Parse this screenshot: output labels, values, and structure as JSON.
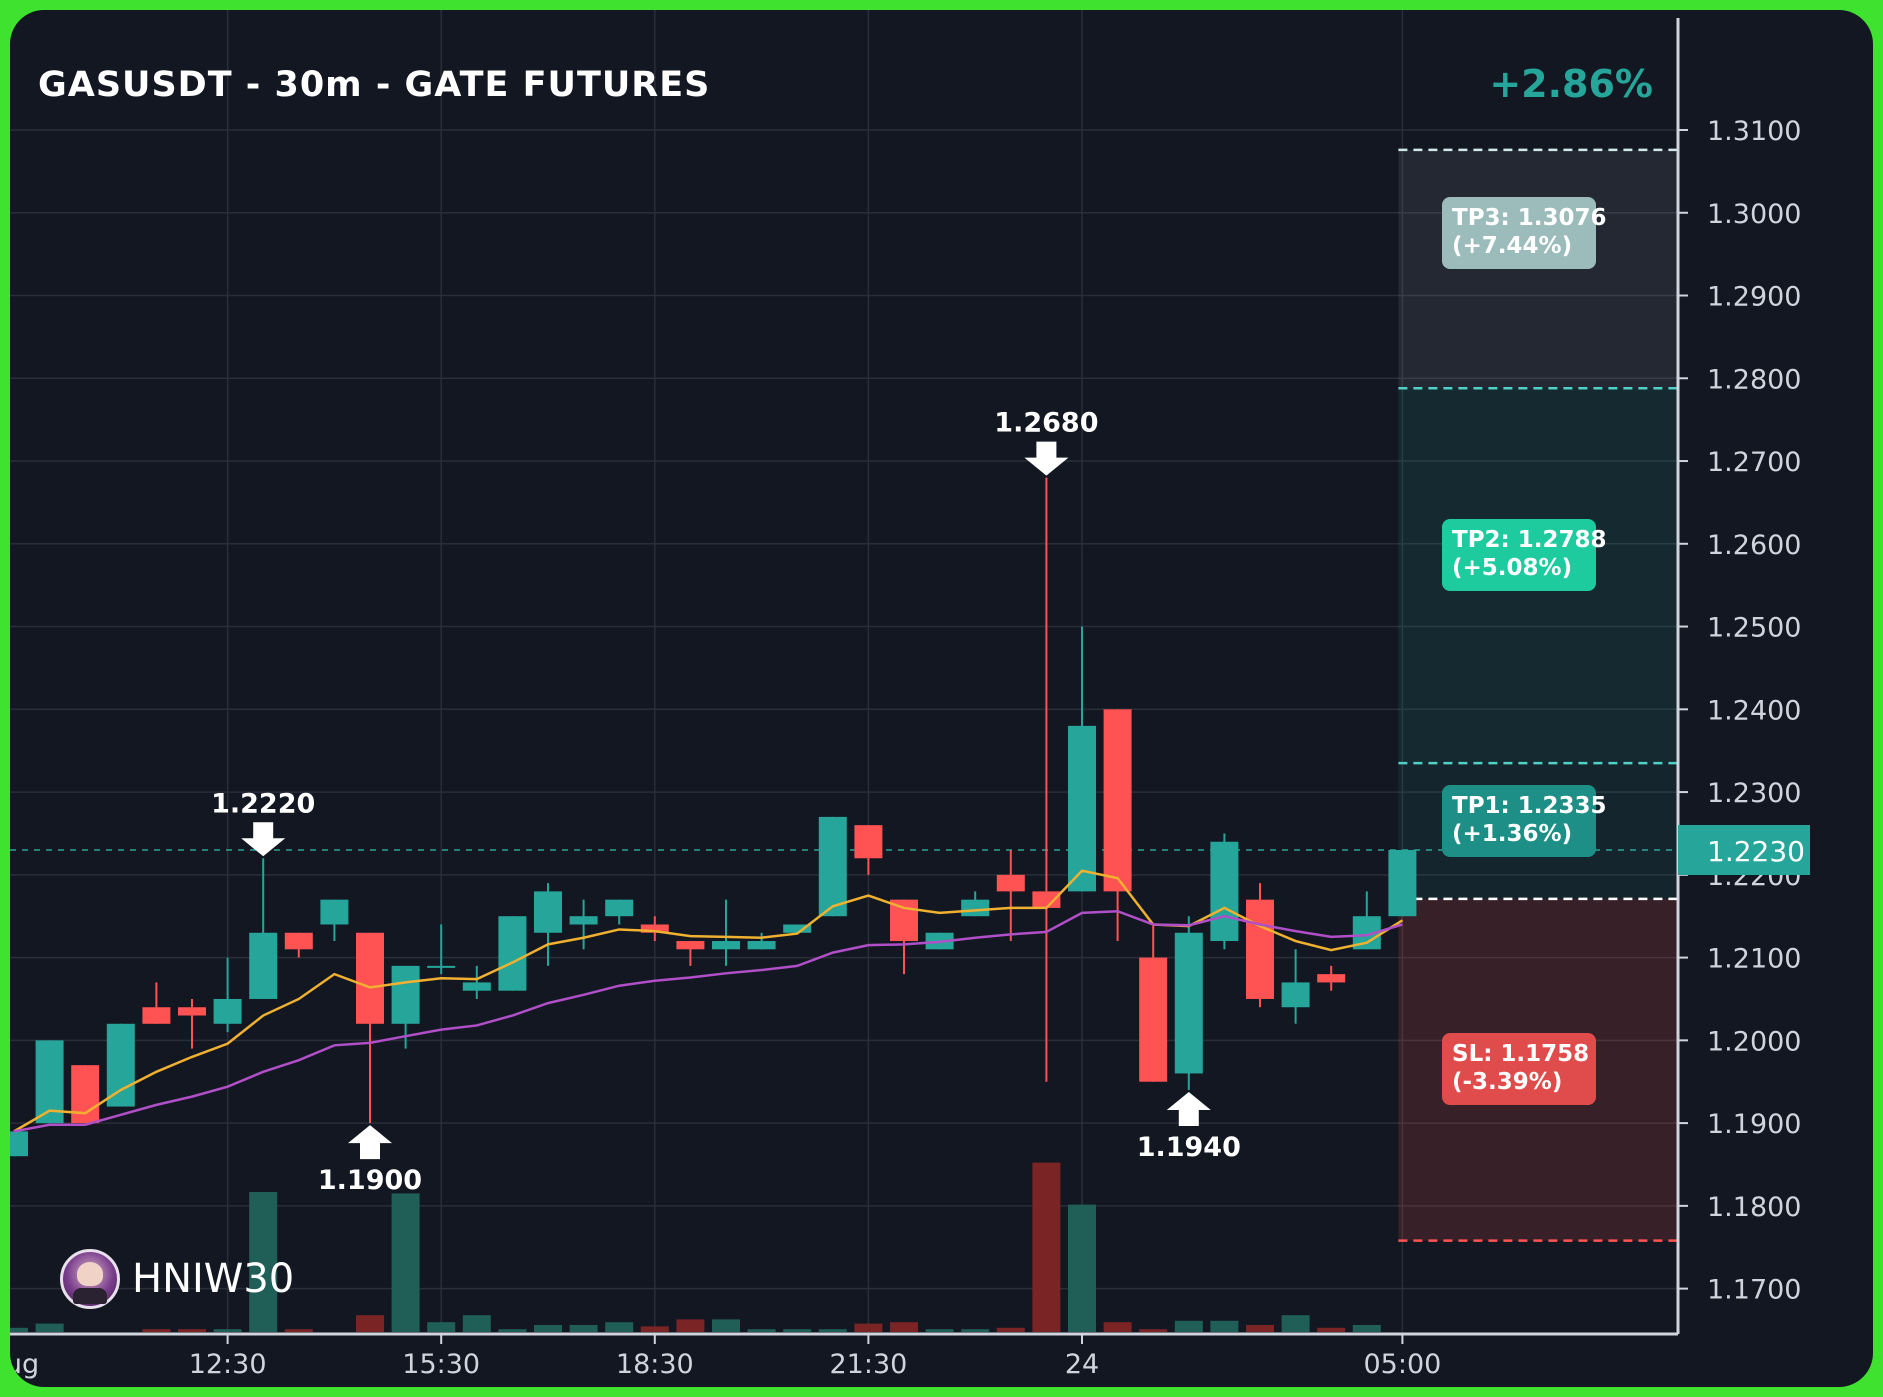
{
  "header": {
    "title": "GASUSDT - 30m - GATE FUTURES",
    "change_percent": "+2.86%"
  },
  "watermark": {
    "username": "HNIW30"
  },
  "colors": {
    "background": "#131722",
    "frame": "#3fe22f",
    "bull": "#26a69a",
    "bear": "#ff5252",
    "ema_fast": "#f0b030",
    "ema_slow": "#b04fc8",
    "grid": "#2a2e39"
  },
  "chart_data": {
    "type": "candlestick",
    "title": "GASUSDT - 30m - GATE FUTURES",
    "timeframe": "30m",
    "y_axis": {
      "ylim": [
        1.165,
        1.3245
      ],
      "ticks": [
        "1.3100",
        "1.3000",
        "1.2900",
        "1.2800",
        "1.2700",
        "1.2600",
        "1.2500",
        "1.2400",
        "1.2300",
        "1.2200",
        "1.2100",
        "1.2000",
        "1.1900",
        "1.1800",
        "1.1700"
      ],
      "position": "right"
    },
    "x_axis": {
      "tick_labels": [
        "ug",
        "12:30",
        "15:30",
        "18:30",
        "21:30",
        "24",
        "05:00"
      ],
      "tick_bar_index": [
        0.0,
        6,
        12,
        18,
        24,
        30,
        39
      ]
    },
    "current_price": "1.2230",
    "candles": [
      {
        "o": 1.186,
        "h": 1.189,
        "l": 1.186,
        "c": 1.189
      },
      {
        "o": 1.19,
        "h": 1.2,
        "l": 1.19,
        "c": 1.2
      },
      {
        "o": 1.197,
        "h": 1.197,
        "l": 1.19,
        "c": 1.19
      },
      {
        "o": 1.192,
        "h": 1.202,
        "l": 1.192,
        "c": 1.202
      },
      {
        "o": 1.204,
        "h": 1.207,
        "l": 1.202,
        "c": 1.202
      },
      {
        "o": 1.204,
        "h": 1.205,
        "l": 1.199,
        "c": 1.203
      },
      {
        "o": 1.202,
        "h": 1.21,
        "l": 1.201,
        "c": 1.205
      },
      {
        "o": 1.205,
        "h": 1.222,
        "l": 1.205,
        "c": 1.213
      },
      {
        "o": 1.213,
        "h": 1.213,
        "l": 1.21,
        "c": 1.211
      },
      {
        "o": 1.214,
        "h": 1.217,
        "l": 1.212,
        "c": 1.217
      },
      {
        "o": 1.213,
        "h": 1.213,
        "l": 1.19,
        "c": 1.202
      },
      {
        "o": 1.202,
        "h": 1.209,
        "l": 1.199,
        "c": 1.209
      },
      {
        "o": 1.209,
        "h": 1.214,
        "l": 1.208,
        "c": 1.209
      },
      {
        "o": 1.206,
        "h": 1.209,
        "l": 1.205,
        "c": 1.207
      },
      {
        "o": 1.206,
        "h": 1.215,
        "l": 1.206,
        "c": 1.215
      },
      {
        "o": 1.213,
        "h": 1.219,
        "l": 1.209,
        "c": 1.218
      },
      {
        "o": 1.214,
        "h": 1.217,
        "l": 1.211,
        "c": 1.215
      },
      {
        "o": 1.215,
        "h": 1.217,
        "l": 1.214,
        "c": 1.217
      },
      {
        "o": 1.214,
        "h": 1.215,
        "l": 1.212,
        "c": 1.213
      },
      {
        "o": 1.212,
        "h": 1.212,
        "l": 1.209,
        "c": 1.211
      },
      {
        "o": 1.211,
        "h": 1.217,
        "l": 1.209,
        "c": 1.212
      },
      {
        "o": 1.211,
        "h": 1.213,
        "l": 1.211,
        "c": 1.212
      },
      {
        "o": 1.213,
        "h": 1.214,
        "l": 1.213,
        "c": 1.214
      },
      {
        "o": 1.215,
        "h": 1.227,
        "l": 1.215,
        "c": 1.227
      },
      {
        "o": 1.226,
        "h": 1.226,
        "l": 1.22,
        "c": 1.222
      },
      {
        "o": 1.217,
        "h": 1.217,
        "l": 1.208,
        "c": 1.212
      },
      {
        "o": 1.211,
        "h": 1.213,
        "l": 1.211,
        "c": 1.213
      },
      {
        "o": 1.215,
        "h": 1.218,
        "l": 1.215,
        "c": 1.217
      },
      {
        "o": 1.22,
        "h": 1.223,
        "l": 1.212,
        "c": 1.218
      },
      {
        "o": 1.218,
        "h": 1.268,
        "l": 1.195,
        "c": 1.216
      },
      {
        "o": 1.218,
        "h": 1.25,
        "l": 1.218,
        "c": 1.238
      },
      {
        "o": 1.24,
        "h": 1.24,
        "l": 1.212,
        "c": 1.218
      },
      {
        "o": 1.21,
        "h": 1.214,
        "l": 1.195,
        "c": 1.195
      },
      {
        "o": 1.196,
        "h": 1.215,
        "l": 1.194,
        "c": 1.213
      },
      {
        "o": 1.212,
        "h": 1.225,
        "l": 1.211,
        "c": 1.224
      },
      {
        "o": 1.217,
        "h": 1.219,
        "l": 1.204,
        "c": 1.205
      },
      {
        "o": 1.204,
        "h": 1.211,
        "l": 1.202,
        "c": 1.207
      },
      {
        "o": 1.208,
        "h": 1.209,
        "l": 1.206,
        "c": 1.207
      },
      {
        "o": 1.211,
        "h": 1.218,
        "l": 1.211,
        "c": 1.215
      },
      {
        "o": 1.215,
        "h": 1.223,
        "l": 1.215,
        "c": 1.223
      }
    ],
    "volume_rel": [
      0.03,
      0.06,
      0.0,
      0.0,
      0.02,
      0.02,
      0.02,
      1.0,
      0.02,
      0.0,
      0.12,
      0.99,
      0.07,
      0.12,
      0.02,
      0.05,
      0.05,
      0.07,
      0.04,
      0.09,
      0.09,
      0.02,
      0.02,
      0.02,
      0.06,
      0.07,
      0.02,
      0.02,
      0.03,
      1.21,
      0.91,
      0.07,
      0.02,
      0.08,
      0.08,
      0.05,
      0.12,
      0.03,
      0.05,
      0.0
    ],
    "series": [
      {
        "name": "",
        "color": "#f0b030",
        "values": [
          1.189,
          1.1915,
          1.1912,
          1.194,
          1.1962,
          1.198,
          1.1996,
          1.203,
          1.205,
          1.208,
          1.2064,
          1.207,
          1.2075,
          1.2074,
          1.2094,
          1.2116,
          1.2124,
          1.2134,
          1.2132,
          1.2126,
          1.2125,
          1.2124,
          1.2129,
          1.2162,
          1.2175,
          1.216,
          1.2154,
          1.2157,
          1.216,
          1.216,
          1.2205,
          1.2196,
          1.214,
          1.2138,
          1.216,
          1.2138,
          1.212,
          1.2109,
          1.2118,
          1.2145
        ]
      },
      {
        "name": "",
        "color": "#b04fc8",
        "values": [
          1.189,
          1.1898,
          1.1898,
          1.191,
          1.1922,
          1.1932,
          1.1944,
          1.1962,
          1.1976,
          1.1994,
          1.1997,
          1.2005,
          1.2013,
          1.2018,
          1.203,
          1.2045,
          1.2055,
          1.2066,
          1.2072,
          1.2076,
          1.2081,
          1.2085,
          1.209,
          1.2106,
          1.2115,
          1.2116,
          1.2119,
          1.2124,
          1.2128,
          1.2131,
          1.2154,
          1.2156,
          1.214,
          1.2139,
          1.215,
          1.214,
          1.2132,
          1.2125,
          1.2127,
          1.214
        ]
      }
    ],
    "annotations": [
      {
        "label": "1.2220",
        "price": 1.222,
        "bar": 7,
        "direction": "down"
      },
      {
        "label": "1.1900",
        "price": 1.19,
        "bar": 10,
        "direction": "up"
      },
      {
        "label": "1.2680",
        "price": 1.268,
        "bar": 29,
        "direction": "down"
      },
      {
        "label": "1.1940",
        "price": 1.194,
        "bar": 33,
        "direction": "up"
      }
    ],
    "trade_levels": {
      "entry": 1.2171,
      "stop_loss": {
        "price": 1.1758,
        "label": "SL: 1.1758",
        "pct": "(-3.39%)"
      },
      "targets": [
        {
          "price": 1.2335,
          "label": "TP1: 1.2335",
          "pct": "(+1.36%)"
        },
        {
          "price": 1.2788,
          "label": "TP2: 1.2788",
          "pct": "(+5.08%)"
        },
        {
          "price": 1.3076,
          "label": "TP3: 1.3076",
          "pct": "(+7.44%)"
        }
      ]
    }
  }
}
